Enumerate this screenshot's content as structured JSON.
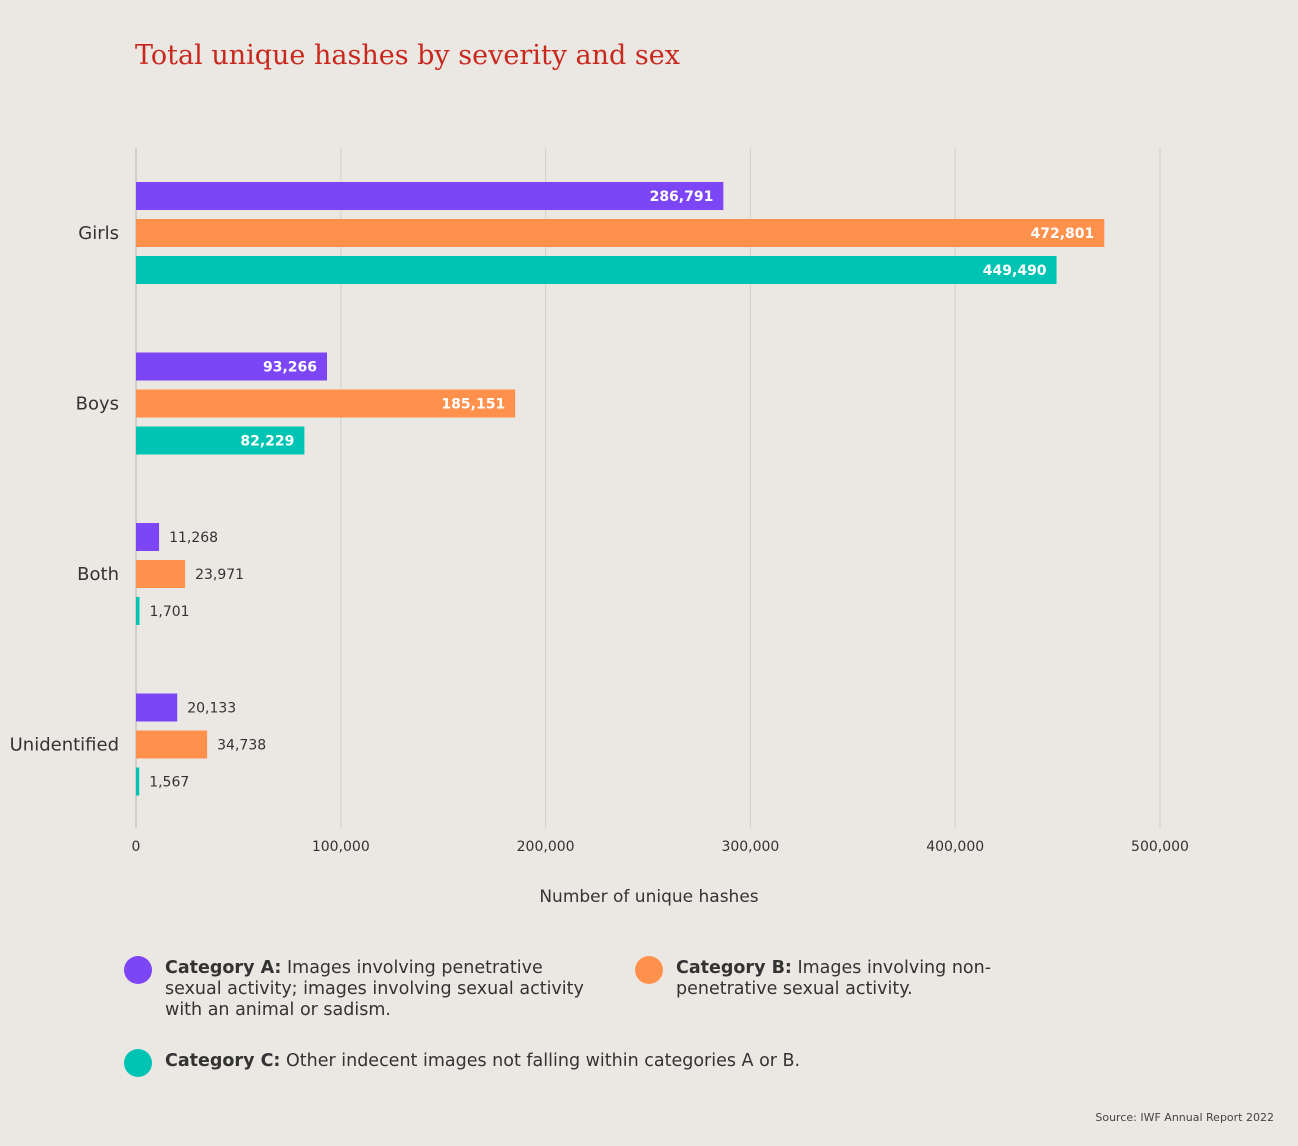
{
  "chart_data": {
    "type": "bar",
    "orientation": "horizontal",
    "title": "Total unique hashes by severity and sex",
    "xlabel": "Number of unique hashes",
    "ylabel": "",
    "xlim": [
      0,
      500000
    ],
    "ticks": [
      0,
      100000,
      200000,
      300000,
      400000,
      500000
    ],
    "tick_labels": [
      "0",
      "100,000",
      "200,000",
      "300,000",
      "400,000",
      "500,000"
    ],
    "grid": true,
    "categories": [
      "Girls",
      "Boys",
      "Both",
      "Unidentified"
    ],
    "series": [
      {
        "name": "Category A",
        "color": "#7c45f5",
        "values": [
          286791,
          93266,
          11268,
          20133
        ],
        "labels": [
          "286,791",
          "93,266",
          "11,268",
          "20,133"
        ]
      },
      {
        "name": "Category B",
        "color": "#ff914d",
        "values": [
          472801,
          185151,
          23971,
          34738
        ],
        "labels": [
          "472,801",
          "185,151",
          "23,971",
          "34,738"
        ]
      },
      {
        "name": "Category C",
        "color": "#00c4b3",
        "values": [
          449490,
          82229,
          1701,
          1567
        ],
        "labels": [
          "449,490",
          "82,229",
          "1,701",
          "1,567"
        ]
      }
    ]
  },
  "legend": [
    {
      "key": "Category A:",
      "text": " Images involving penetrative sexual activity; images involving sexual activity with an animal or sadism.",
      "color": "#7c45f5"
    },
    {
      "key": "Category B:",
      "text": " Images involving non-penetrative sexual activity.",
      "color": "#ff914d"
    },
    {
      "key": "Category C:",
      "text": " Other indecent images not falling within categories A or B.",
      "color": "#00c4b3"
    }
  ],
  "source": "Source: IWF Annual Report 2022"
}
